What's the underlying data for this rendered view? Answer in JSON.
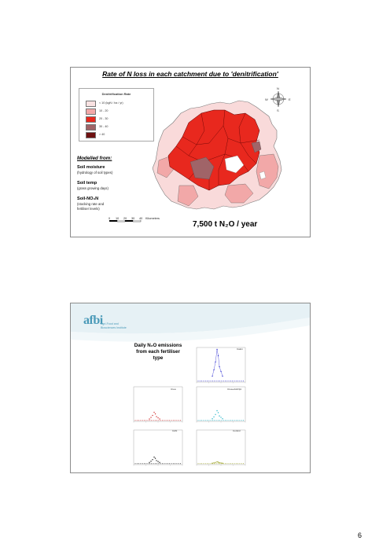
{
  "slide1": {
    "title": "Rate of N loss in each catchment due to 'denitrification'",
    "legend": {
      "title": "Denitrification Rate",
      "items": [
        {
          "label": "< 10      (kgN / ha / yr)",
          "color": "#f9e2e2"
        },
        {
          "label": "10 - 20",
          "color": "#f2a8a8"
        },
        {
          "label": "20 - 30",
          "color": "#e8281e"
        },
        {
          "label": "30 - 40",
          "color": "#a06468"
        },
        {
          "label": "> 40",
          "color": "#6e1010"
        }
      ]
    },
    "modelled_from": "Modelled from:",
    "factors": [
      {
        "name": "Soil moisture",
        "detail": "(hydrology of soil types)"
      },
      {
        "name": "Soil temp",
        "detail": "(grass growing days)"
      },
      {
        "name": "Soil-NO₃N",
        "detail_lines": [
          "(stocking rate and",
          "fertiliser levels)"
        ]
      }
    ],
    "scale": {
      "ticks": [
        "0",
        "10",
        "20",
        "30",
        "40"
      ],
      "unit": "Kilometers"
    },
    "compass": {
      "n": "N",
      "e": "E",
      "s": "S",
      "w": "W"
    },
    "total": "7,500 t N₂O / year"
  },
  "slide2": {
    "logo": {
      "text": "afbi",
      "sub_lines": [
        "Agri-Food and",
        "Biosciences Institute"
      ]
    },
    "title_lines": [
      "Daily N₂O emissions",
      "from each fertiliser",
      "type"
    ],
    "charts": [
      {
        "name": "Calon",
        "color": "#3232d2",
        "peak": 1.0
      },
      {
        "name": "Urea",
        "color": "#d23232",
        "peak": 0.25
      },
      {
        "name": "Urea+AdvNpt",
        "color": "#23b4c8",
        "peak": 0.3
      },
      {
        "name": "CAN",
        "color": "#202020",
        "peak": 0.2
      },
      {
        "name": "Control",
        "color": "#9aa020",
        "peak": 0.05
      }
    ]
  },
  "page_number": "6"
}
